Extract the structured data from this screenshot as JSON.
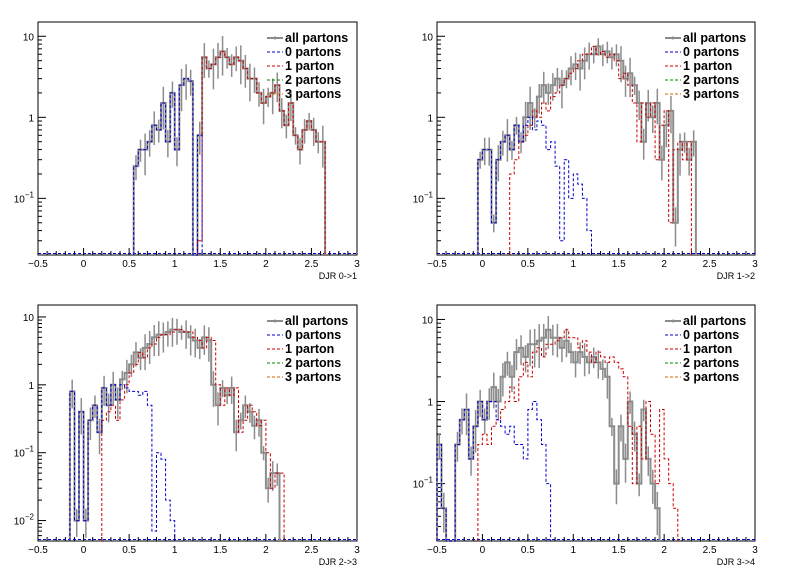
{
  "colors": {
    "all_partons": "#8c8c8c",
    "parton_0": "#0000cc",
    "parton_1": "#cc0000",
    "parton_2": "#008800",
    "parton_3": "#cc6600",
    "background": "#ffffff"
  },
  "legend_entries": [
    {
      "label": "all partons",
      "color_key": "all_partons",
      "style": "solid-markers"
    },
    {
      "label": "0 partons",
      "color_key": "parton_0",
      "style": "dashed"
    },
    {
      "label": "1 parton",
      "color_key": "parton_1",
      "style": "dashed"
    },
    {
      "label": "2 partons",
      "color_key": "parton_2",
      "style": "dashed"
    },
    {
      "label": "3 partons",
      "color_key": "parton_3",
      "style": "dashed"
    }
  ],
  "chart_data": [
    {
      "type": "histogram",
      "xlabel": "DJR 0->1",
      "xlim": [
        -0.5,
        3
      ],
      "ylim": [
        0.02,
        15
      ],
      "log_y": true,
      "xticks": [
        -0.5,
        0,
        0.5,
        1,
        1.5,
        2,
        2.5,
        3
      ],
      "xtick_labels": [
        "−0.5",
        "0",
        "0.5",
        "1",
        "1.5",
        "2",
        "2.5",
        "3"
      ],
      "yticks": [
        0.1,
        1,
        10
      ],
      "legend_position": "top-right",
      "bin_width": 0.05,
      "series": [
        {
          "key": "all_partons",
          "x0": 0.55,
          "values": [
            0.25,
            0.4,
            0.4,
            0.5,
            0.8,
            0.7,
            1.5,
            0.5,
            2.0,
            0.4,
            2.5,
            3.0,
            2.8,
            0,
            0.6,
            5.5,
            4.0,
            4.5,
            5.5,
            6.5,
            5.5,
            4.5,
            5.5,
            5.0,
            4.0,
            3.0,
            3.0,
            2.0,
            1.5,
            1.8,
            2.0,
            2.5,
            1.2,
            0.8,
            1.5,
            0.6,
            0.4,
            0.7,
            0.9,
            0.7,
            0.5,
            0.5
          ]
        },
        {
          "key": "parton_0",
          "x0": 0.55,
          "values": [
            0.25,
            0.4,
            0.4,
            0.5,
            0.8,
            0.7,
            1.5,
            0.5,
            2.0,
            0.4,
            2.5,
            3.0,
            2.8,
            0,
            0.6
          ]
        },
        {
          "key": "parton_1",
          "x0": 1.25,
          "values": [
            0.03,
            5.5,
            4.0,
            4.5,
            5.5,
            6.5,
            5.5,
            4.5,
            5.5,
            5.0,
            4.0,
            3.0,
            3.0,
            2.0,
            1.5,
            1.8,
            2.0,
            2.5,
            1.2,
            0.8,
            1.5,
            0.6,
            0.4,
            0.7,
            0.9,
            0.7,
            0.5,
            0.5
          ]
        }
      ]
    },
    {
      "type": "histogram",
      "xlabel": "DJR 1->2",
      "xlim": [
        -0.5,
        3
      ],
      "ylim": [
        0.02,
        15
      ],
      "log_y": true,
      "xticks": [
        -0.5,
        0,
        0.5,
        1,
        1.5,
        2,
        2.5,
        3
      ],
      "xtick_labels": [
        "−0.5",
        "0",
        "0.5",
        "1",
        "1.5",
        "2",
        "2.5",
        "3"
      ],
      "yticks": [
        0.1,
        1,
        10
      ],
      "legend_position": "top-right",
      "bin_width": 0.05,
      "series": [
        {
          "key": "all_partons",
          "x0": -0.05,
          "values": [
            0.3,
            0.4,
            0.4,
            0.05,
            0.3,
            0.5,
            0.6,
            0.4,
            0.8,
            0.5,
            1.0,
            1.5,
            1.0,
            1.8,
            2.5,
            2.0,
            2.5,
            3.0,
            2.5,
            3.0,
            4.0,
            4.5,
            4.0,
            5.0,
            6.0,
            6.0,
            7.5,
            6.0,
            6.5,
            5.5,
            6.0,
            5.0,
            3.0,
            3.5,
            2.5,
            1.5,
            0.5,
            1.5,
            1.0,
            1.5,
            0.3,
            0.8,
            1.2,
            0.05,
            0.4,
            0.5,
            0.3,
            0.5
          ]
        },
        {
          "key": "parton_0",
          "x0": -0.05,
          "values": [
            0.3,
            0.4,
            0.4,
            0.05,
            0.3,
            0.5,
            0.6,
            0.4,
            0.8,
            0.5,
            0.8,
            1.0,
            0.7,
            0.9,
            0.8,
            0.4,
            0.5,
            0.25,
            0.03,
            0.3,
            0.1,
            0.2,
            0.15,
            0.1,
            0.04
          ]
        },
        {
          "key": "parton_1",
          "x0": 0.3,
          "values": [
            0.2,
            0.3,
            0.5,
            0.6,
            0.8,
            1.2,
            1.0,
            1.5,
            1.2,
            1.8,
            2.0,
            2.5,
            3.0,
            3.5,
            4.0,
            5.0,
            6.0,
            6.0,
            7.5,
            6.0,
            6.5,
            5.5,
            6.0,
            5.0,
            3.0,
            3.5,
            2.5,
            1.5,
            0.5,
            1.5,
            1.0,
            1.5,
            0.3,
            0.8,
            1.2,
            0.05,
            0.4,
            0.5,
            0.3,
            0.5
          ]
        }
      ]
    },
    {
      "type": "histogram",
      "xlabel": "DJR 2->3",
      "xlim": [
        -0.5,
        3
      ],
      "ylim": [
        0.005,
        15
      ],
      "log_y": true,
      "xticks": [
        -0.5,
        0,
        0.5,
        1,
        1.5,
        2,
        2.5,
        3
      ],
      "xtick_labels": [
        "−0.5",
        "0",
        "0.5",
        "1",
        "1.5",
        "2",
        "2.5",
        "3"
      ],
      "yticks": [
        0.01,
        0.1,
        1,
        10
      ],
      "legend_position": "top-right",
      "bin_width": 0.05,
      "series": [
        {
          "key": "all_partons",
          "x0": -0.15,
          "values": [
            0.8,
            0.01,
            0.4,
            0.01,
            0.3,
            0.5,
            0.2,
            0.9,
            0.5,
            1.0,
            0.6,
            1.2,
            1.5,
            2.0,
            3.0,
            2.5,
            3.5,
            4.0,
            5.0,
            5.5,
            5.5,
            6.0,
            6.5,
            6.5,
            6.0,
            6.0,
            5.0,
            4.5,
            3.5,
            5.0,
            4.5,
            1.0,
            0.5,
            0.9,
            0.7,
            0.9,
            0.2,
            0.3,
            0.5,
            0.4,
            0.25,
            0.3,
            0.1,
            0.03,
            0.05,
            0.05
          ]
        },
        {
          "key": "parton_0",
          "x0": -0.15,
          "values": [
            0.8,
            0.01,
            0.4,
            0.01,
            0.3,
            0.5,
            0.2,
            0.9,
            0.5,
            1.0,
            0.6,
            1.0,
            0.9,
            0.8,
            0.8,
            0.7,
            0.8,
            0.5,
            0.007,
            0.1,
            0.08,
            0.02,
            0.01
          ]
        },
        {
          "key": "parton_1",
          "x0": 0.2,
          "values": [
            0.3,
            0.4,
            0.5,
            0.3,
            0.6,
            1.0,
            1.5,
            2.0,
            3.0,
            2.5,
            3.5,
            4.0,
            5.0,
            5.5,
            5.5,
            6.0,
            6.5,
            6.5,
            6.0,
            6.0,
            5.0,
            4.5,
            3.5,
            5.0,
            4.5,
            1.0,
            0.5,
            0.9,
            0.7,
            0.9,
            0.2,
            0.3,
            0.5,
            0.4,
            0.25,
            0.3,
            0.1,
            0.03,
            0.05,
            0.05
          ]
        }
      ]
    },
    {
      "type": "histogram",
      "xlabel": "DJR 3->4",
      "xlim": [
        -0.5,
        3
      ],
      "ylim": [
        0.02,
        15
      ],
      "log_y": true,
      "xticks": [
        -0.5,
        0,
        0.5,
        1,
        1.5,
        2,
        2.5,
        3
      ],
      "xtick_labels": [
        "−0.5",
        "0",
        "0.5",
        "1",
        "1.5",
        "2",
        "2.5",
        "3"
      ],
      "yticks": [
        0.1,
        1,
        10
      ],
      "legend_position": "top-right",
      "bin_width": 0.05,
      "series": [
        {
          "key": "all_partons",
          "x0": -0.5,
          "values": [
            0.3,
            0.05,
            0,
            0,
            0.3,
            0.6,
            0.8,
            0.2,
            0.5,
            1.0,
            0.6,
            1.0,
            1.5,
            1.0,
            2.0,
            3.0,
            2.0,
            4.0,
            4.5,
            3.5,
            5.0,
            5.0,
            5.5,
            6.0,
            7.5,
            6.0,
            6.0,
            4.5,
            5.5,
            4.0,
            3.0,
            4.0,
            3.5,
            3.0,
            3.5,
            3.0,
            2.5,
            2.0,
            0.5,
            0.1,
            0.5,
            0.2,
            1.0,
            0.4,
            0.1,
            0.8,
            0.2,
            0.1,
            0.05
          ]
        },
        {
          "key": "parton_0",
          "x0": -0.5,
          "values": [
            0.3,
            0.05,
            0,
            0,
            0.3,
            0.6,
            0.8,
            0.2,
            0.5,
            1.0,
            0.6,
            1.0,
            1.0,
            0.6,
            0.5,
            0.4,
            0.5,
            0.3,
            0.3,
            0.2,
            0.8,
            1.0,
            0.6,
            0.3,
            0.1
          ]
        },
        {
          "key": "parton_1",
          "x0": -0.05,
          "values": [
            0.3,
            0.4,
            0.3,
            0.5,
            0.6,
            0.8,
            1.0,
            1.5,
            1.0,
            2.0,
            3.0,
            2.0,
            4.0,
            4.5,
            3.5,
            5.0,
            5.0,
            5.5,
            6.0,
            7.5,
            6.0,
            6.0,
            4.5,
            5.5,
            4.0,
            3.0,
            4.0,
            3.5,
            3.0,
            3.5,
            3.0,
            2.5,
            2.0,
            0.5,
            0.1,
            0.5,
            0.2,
            1.0,
            0.4,
            0.1,
            0.8,
            0.2,
            0.1,
            0.05
          ]
        }
      ]
    }
  ]
}
